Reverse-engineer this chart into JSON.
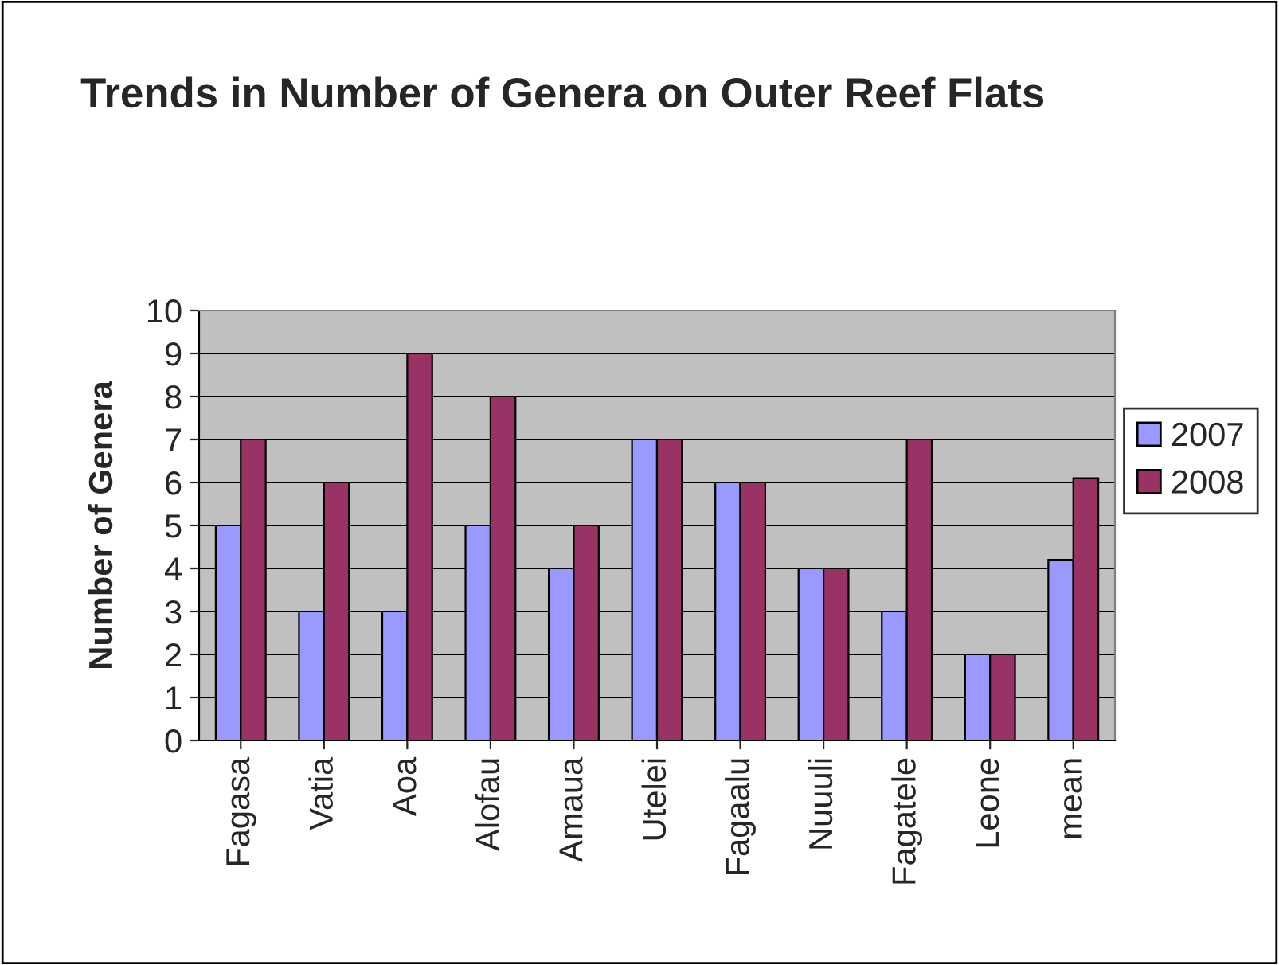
{
  "chart_data": {
    "type": "bar",
    "title": "Trends in Number of Genera on Outer Reef Flats",
    "ylabel": "Number of Genera",
    "categories": [
      "Fagasa",
      "Vatia",
      "Aoa",
      "Alofau",
      "Amaua",
      "Utelei",
      "Fagaalu",
      "Nuuuli",
      "Fagatele",
      "Leone",
      "mean"
    ],
    "series": [
      {
        "name": "2007",
        "color": "#9999ff",
        "values": [
          5,
          3,
          3,
          5,
          4,
          7,
          6,
          4,
          3,
          2,
          4.2
        ]
      },
      {
        "name": "2008",
        "color": "#993366",
        "values": [
          7,
          6,
          9,
          8,
          5,
          7,
          6,
          4,
          7,
          2,
          6.1
        ]
      }
    ],
    "ylim": [
      0,
      10
    ],
    "yticks": [
      0,
      1,
      2,
      3,
      4,
      5,
      6,
      7,
      8,
      9,
      10
    ],
    "grid": "y",
    "legend": "right"
  }
}
